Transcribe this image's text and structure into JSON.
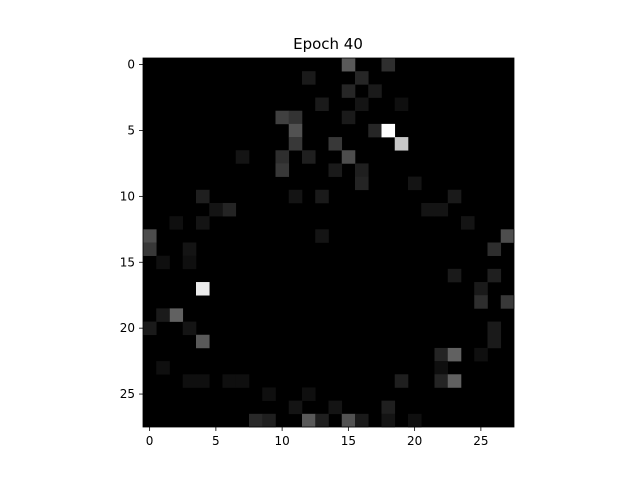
{
  "chart_data": {
    "type": "heatmap",
    "title": "Epoch 40",
    "xlabel": "",
    "ylabel": "",
    "xlim": [
      -0.5,
      27.5
    ],
    "ylim": [
      27.5,
      -0.5
    ],
    "xticks": [
      0,
      5,
      10,
      15,
      20,
      25
    ],
    "xtick_labels": [
      "0",
      "5",
      "10",
      "15",
      "20",
      "25"
    ],
    "yticks": [
      0,
      5,
      10,
      15,
      20,
      25
    ],
    "ytick_labels": [
      "0",
      "5",
      "10",
      "15",
      "20",
      "25"
    ],
    "colormap": "gray",
    "grid": false,
    "shape": [
      28,
      28
    ],
    "cells": [
      {
        "row": 0,
        "col": 15,
        "value": 0.35
      },
      {
        "row": 0,
        "col": 18,
        "value": 0.18
      },
      {
        "row": 1,
        "col": 12,
        "value": 0.1
      },
      {
        "row": 1,
        "col": 16,
        "value": 0.15
      },
      {
        "row": 2,
        "col": 15,
        "value": 0.15
      },
      {
        "row": 2,
        "col": 17,
        "value": 0.1
      },
      {
        "row": 3,
        "col": 13,
        "value": 0.1
      },
      {
        "row": 3,
        "col": 16,
        "value": 0.08
      },
      {
        "row": 3,
        "col": 19,
        "value": 0.06
      },
      {
        "row": 4,
        "col": 10,
        "value": 0.25
      },
      {
        "row": 4,
        "col": 11,
        "value": 0.2
      },
      {
        "row": 4,
        "col": 15,
        "value": 0.1
      },
      {
        "row": 5,
        "col": 11,
        "value": 0.32
      },
      {
        "row": 5,
        "col": 17,
        "value": 0.15
      },
      {
        "row": 5,
        "col": 18,
        "value": 1.0
      },
      {
        "row": 6,
        "col": 11,
        "value": 0.22
      },
      {
        "row": 6,
        "col": 14,
        "value": 0.22
      },
      {
        "row": 6,
        "col": 19,
        "value": 0.78
      },
      {
        "row": 7,
        "col": 10,
        "value": 0.18
      },
      {
        "row": 7,
        "col": 12,
        "value": 0.12
      },
      {
        "row": 7,
        "col": 15,
        "value": 0.3
      },
      {
        "row": 7,
        "col": 7,
        "value": 0.08
      },
      {
        "row": 8,
        "col": 10,
        "value": 0.22
      },
      {
        "row": 8,
        "col": 14,
        "value": 0.1
      },
      {
        "row": 8,
        "col": 16,
        "value": 0.12
      },
      {
        "row": 9,
        "col": 16,
        "value": 0.14
      },
      {
        "row": 9,
        "col": 20,
        "value": 0.08
      },
      {
        "row": 10,
        "col": 4,
        "value": 0.12
      },
      {
        "row": 10,
        "col": 11,
        "value": 0.08
      },
      {
        "row": 10,
        "col": 13,
        "value": 0.1
      },
      {
        "row": 10,
        "col": 23,
        "value": 0.1
      },
      {
        "row": 11,
        "col": 6,
        "value": 0.14
      },
      {
        "row": 11,
        "col": 5,
        "value": 0.08
      },
      {
        "row": 11,
        "col": 21,
        "value": 0.08
      },
      {
        "row": 11,
        "col": 22,
        "value": 0.08
      },
      {
        "row": 12,
        "col": 4,
        "value": 0.08
      },
      {
        "row": 12,
        "col": 24,
        "value": 0.08
      },
      {
        "row": 12,
        "col": 2,
        "value": 0.06
      },
      {
        "row": 13,
        "col": 0,
        "value": 0.3
      },
      {
        "row": 13,
        "col": 27,
        "value": 0.3
      },
      {
        "row": 13,
        "col": 13,
        "value": 0.08
      },
      {
        "row": 14,
        "col": 0,
        "value": 0.22
      },
      {
        "row": 14,
        "col": 26,
        "value": 0.18
      },
      {
        "row": 14,
        "col": 3,
        "value": 0.08
      },
      {
        "row": 15,
        "col": 3,
        "value": 0.06
      },
      {
        "row": 15,
        "col": 1,
        "value": 0.06
      },
      {
        "row": 16,
        "col": 23,
        "value": 0.1
      },
      {
        "row": 16,
        "col": 26,
        "value": 0.12
      },
      {
        "row": 17,
        "col": 4,
        "value": 0.92
      },
      {
        "row": 17,
        "col": 25,
        "value": 0.1
      },
      {
        "row": 18,
        "col": 25,
        "value": 0.18
      },
      {
        "row": 18,
        "col": 27,
        "value": 0.22
      },
      {
        "row": 19,
        "col": 2,
        "value": 0.38
      },
      {
        "row": 19,
        "col": 1,
        "value": 0.1
      },
      {
        "row": 20,
        "col": 0,
        "value": 0.1
      },
      {
        "row": 20,
        "col": 3,
        "value": 0.08
      },
      {
        "row": 20,
        "col": 26,
        "value": 0.1
      },
      {
        "row": 21,
        "col": 4,
        "value": 0.35
      },
      {
        "row": 21,
        "col": 26,
        "value": 0.1
      },
      {
        "row": 22,
        "col": 22,
        "value": 0.14
      },
      {
        "row": 22,
        "col": 23,
        "value": 0.38
      },
      {
        "row": 22,
        "col": 25,
        "value": 0.06
      },
      {
        "row": 23,
        "col": 1,
        "value": 0.06
      },
      {
        "row": 23,
        "col": 22,
        "value": 0.06
      },
      {
        "row": 24,
        "col": 3,
        "value": 0.06
      },
      {
        "row": 24,
        "col": 4,
        "value": 0.06
      },
      {
        "row": 24,
        "col": 6,
        "value": 0.06
      },
      {
        "row": 24,
        "col": 7,
        "value": 0.06
      },
      {
        "row": 24,
        "col": 19,
        "value": 0.12
      },
      {
        "row": 24,
        "col": 22,
        "value": 0.14
      },
      {
        "row": 24,
        "col": 23,
        "value": 0.38
      },
      {
        "row": 25,
        "col": 9,
        "value": 0.06
      },
      {
        "row": 25,
        "col": 12,
        "value": 0.06
      },
      {
        "row": 26,
        "col": 11,
        "value": 0.08
      },
      {
        "row": 26,
        "col": 14,
        "value": 0.08
      },
      {
        "row": 26,
        "col": 18,
        "value": 0.12
      },
      {
        "row": 27,
        "col": 8,
        "value": 0.16
      },
      {
        "row": 27,
        "col": 9,
        "value": 0.12
      },
      {
        "row": 27,
        "col": 12,
        "value": 0.35
      },
      {
        "row": 27,
        "col": 13,
        "value": 0.12
      },
      {
        "row": 27,
        "col": 15,
        "value": 0.32
      },
      {
        "row": 27,
        "col": 16,
        "value": 0.1
      },
      {
        "row": 27,
        "col": 18,
        "value": 0.08
      },
      {
        "row": 27,
        "col": 20,
        "value": 0.06
      }
    ]
  }
}
